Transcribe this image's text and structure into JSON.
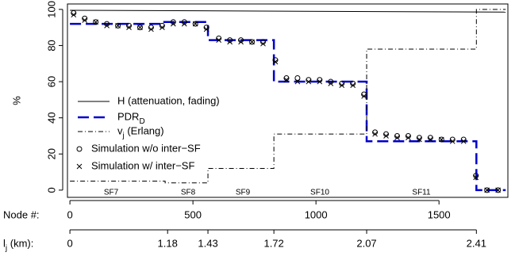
{
  "chart_data": {
    "type": "line",
    "ylabel": "%",
    "xlabel": "Node #:",
    "x2label": "l_j (km):",
    "xlim": [
      -10,
      1780
    ],
    "ylim": [
      -4,
      103
    ],
    "xticks": [
      0,
      500,
      1000,
      1500
    ],
    "yticks": [
      0,
      20,
      40,
      60,
      80,
      100
    ],
    "x2ticks": [
      0,
      {
        "value": 397,
        "label": "1.18"
      },
      {
        "value": 561,
        "label": "1.43"
      },
      {
        "value": 829,
        "label": "1.72"
      },
      {
        "value": 1206,
        "label": "2.07"
      },
      {
        "value": 1652,
        "label": "2.41"
      }
    ],
    "annotations": [
      "SF7",
      "SF8",
      "SF9",
      "SF10",
      "SF11"
    ],
    "legend": "upper left",
    "series": [
      {
        "name": "H (attenuation, fading)",
        "color": "#000000",
        "style": "solid",
        "x": [
          0,
          1771
        ],
        "values": [
          99.5,
          98.5
        ]
      },
      {
        "name": "PDR_D",
        "color": "#0000cc",
        "style": "dashed",
        "x": [
          0,
          377,
          377,
          561,
          561,
          829,
          829,
          1206,
          1206,
          1652,
          1652,
          1771
        ],
        "values": [
          92,
          92,
          93,
          93,
          83,
          83,
          60,
          60,
          27,
          27,
          0,
          0
        ]
      },
      {
        "name": "v_j (Erlang)",
        "color": "#000000",
        "style": "dashdot",
        "x": [
          0,
          387,
          387,
          561,
          561,
          829,
          829,
          1206,
          1206,
          1652,
          1652,
          1771
        ],
        "values": [
          5,
          5,
          4,
          4,
          12,
          12,
          31,
          31,
          78,
          78,
          100,
          100
        ]
      },
      {
        "name": "Simulation w/o inter−SF",
        "color": "#000000",
        "marker": "o",
        "x": [
          15,
          60,
          105,
          150,
          195,
          240,
          285,
          330,
          375,
          420,
          465,
          510,
          555,
          605,
          650,
          695,
          740,
          785,
          835,
          880,
          925,
          970,
          1015,
          1060,
          1105,
          1150,
          1195,
          1240,
          1285,
          1330,
          1375,
          1420,
          1465,
          1510,
          1555,
          1600,
          1650,
          1695,
          1740
        ],
        "values": [
          98,
          95,
          93,
          92,
          91,
          91,
          90,
          90,
          91,
          93,
          93,
          92,
          90,
          84,
          83,
          83,
          82,
          82,
          72,
          62,
          62,
          61,
          61,
          60,
          59,
          59,
          53,
          32,
          31,
          30,
          30,
          29,
          29,
          28,
          28,
          28,
          8,
          0,
          0
        ]
      },
      {
        "name": "Simulation w/ inter−SF",
        "color": "#000000",
        "marker": "x",
        "x": [
          15,
          60,
          105,
          150,
          195,
          240,
          285,
          330,
          375,
          420,
          465,
          510,
          555,
          605,
          650,
          695,
          740,
          785,
          835,
          880,
          925,
          970,
          1015,
          1060,
          1105,
          1150,
          1195,
          1240,
          1285,
          1330,
          1375,
          1420,
          1465,
          1510,
          1555,
          1600,
          1650,
          1695,
          1740
        ],
        "values": [
          97,
          94,
          93,
          91,
          91,
          90,
          90,
          89,
          90,
          92,
          92,
          92,
          89,
          83,
          82,
          82,
          82,
          81,
          71,
          61,
          60,
          60,
          60,
          59,
          58,
          58,
          52,
          31,
          30,
          29,
          29,
          28,
          28,
          28,
          27,
          27,
          7,
          0,
          0
        ]
      }
    ]
  }
}
